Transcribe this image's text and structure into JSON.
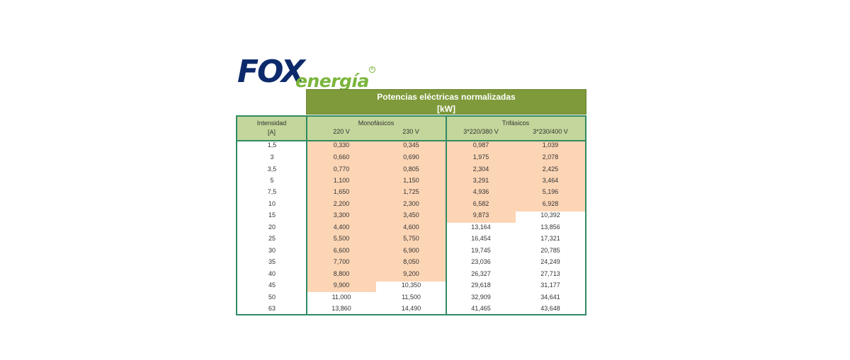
{
  "logo": {
    "brand": "FOX",
    "product": "energía",
    "reg_mark": "R"
  },
  "title": {
    "line1": "Potencias eléctricas normalizadas",
    "line2": "[kW]"
  },
  "headers": {
    "intensity_line1": "Intensidad",
    "intensity_line2": "[A]",
    "mono": "Monofásicos",
    "tri": "Trifásicos",
    "v220": "220 V",
    "v230": "230 V",
    "v3_220": "3*220/380 V",
    "v3_230": "3*230/400 V"
  },
  "rows": [
    {
      "a": "1,5",
      "m220": "0,330",
      "m230": "0,345",
      "t220": "0,987",
      "t230": "1,039"
    },
    {
      "a": "3",
      "m220": "0,660",
      "m230": "0,690",
      "t220": "1,975",
      "t230": "2,078"
    },
    {
      "a": "3,5",
      "m220": "0,770",
      "m230": "0,805",
      "t220": "2,304",
      "t230": "2,425"
    },
    {
      "a": "5",
      "m220": "1,100",
      "m230": "1,150",
      "t220": "3,291",
      "t230": "3,464"
    },
    {
      "a": "7,5",
      "m220": "1,650",
      "m230": "1,725",
      "t220": "4,936",
      "t230": "5,196"
    },
    {
      "a": "10",
      "m220": "2,200",
      "m230": "2,300",
      "t220": "6,582",
      "t230": "6,928"
    },
    {
      "a": "15",
      "m220": "3,300",
      "m230": "3,450",
      "t220": "9,873",
      "t230": "10,392"
    },
    {
      "a": "20",
      "m220": "4,400",
      "m230": "4,600",
      "t220": "13,164",
      "t230": "13,856"
    },
    {
      "a": "25",
      "m220": "5,500",
      "m230": "5,750",
      "t220": "16,454",
      "t230": "17,321"
    },
    {
      "a": "30",
      "m220": "6,600",
      "m230": "6,900",
      "t220": "19,745",
      "t230": "20,785"
    },
    {
      "a": "35",
      "m220": "7,700",
      "m230": "8,050",
      "t220": "23,036",
      "t230": "24,249"
    },
    {
      "a": "40",
      "m220": "8,800",
      "m230": "9,200",
      "t220": "26,327",
      "t230": "27,713"
    },
    {
      "a": "45",
      "m220": "9,900",
      "m230": "10,350",
      "t220": "29,618",
      "t230": "31,177"
    },
    {
      "a": "50",
      "m220": "11,000",
      "m230": "11,500",
      "t220": "32,909",
      "t230": "34,641"
    },
    {
      "a": "63",
      "m220": "13,860",
      "m230": "14,490",
      "t220": "41,465",
      "t230": "43,648"
    }
  ],
  "colors": {
    "header_green": "#7f9a3a",
    "subheader": "#c3d69b",
    "highlight": "#fcd5b5",
    "border": "#2f8a63"
  }
}
